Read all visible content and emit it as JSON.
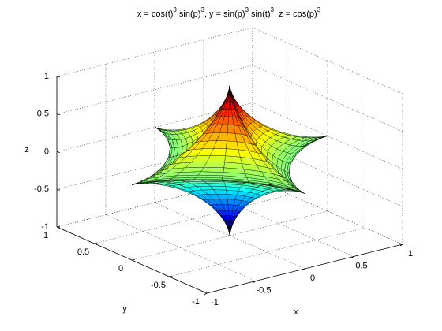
{
  "chart_data": {
    "type": "surface3d",
    "title": [
      "x = cos(t)",
      "3",
      " sin(p)",
      "3",
      ", y = sin(p)",
      "3",
      " sin(t)",
      "3",
      ", z = cos(p)",
      "3"
    ],
    "xlabel": "x",
    "ylabel": "y",
    "zlabel": "z",
    "xlim": [
      -1,
      1
    ],
    "ylim": [
      -1,
      1
    ],
    "zlim": [
      -1,
      1
    ],
    "xticks": [
      -1,
      -0.5,
      0,
      0.5,
      1
    ],
    "yticks": [
      -1,
      -0.5,
      0,
      0.5,
      1
    ],
    "zticks": [
      -1,
      -0.5,
      0,
      0.5,
      1
    ],
    "grid": true,
    "colormap": "jet",
    "edgecolor": "#000000"
  }
}
